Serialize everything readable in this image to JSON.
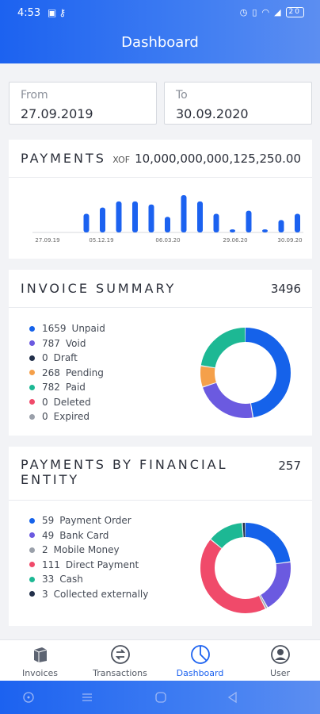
{
  "status_bar": {
    "time": "4:53",
    "left_icons": [
      "sim-card-icon",
      "key-icon"
    ],
    "right_icons": [
      "alarm-icon",
      "vibrate-icon",
      "wifi-icon",
      "signal-icon"
    ],
    "battery": "20"
  },
  "header": {
    "title": "Dashboard"
  },
  "date_range": {
    "from": {
      "label": "From",
      "value": "27.09.2019"
    },
    "to": {
      "label": "To",
      "value": "30.09.2020"
    }
  },
  "payments": {
    "title": "PAYMENTS",
    "currency": "XOF",
    "amount": "10,000,000,000,125,250.00",
    "chart_data": {
      "type": "bar",
      "values": [
        6,
        8,
        10,
        10,
        9,
        5,
        12,
        10,
        6,
        1,
        7,
        1,
        4,
        6
      ],
      "x_tick_labels": [
        "27.09.19",
        "05.12.19",
        "06.03.20",
        "29.06.20",
        "30.09.20"
      ],
      "bar_color": "#1c62f0",
      "title": "",
      "xlabel": "",
      "ylabel": ""
    }
  },
  "invoice_summary": {
    "title": "INVOICE SUMMARY",
    "total": "3496",
    "chart_data": {
      "type": "pie",
      "donut": true,
      "slices": [
        {
          "label": "Unpaid",
          "value": 1659,
          "color": "#1562ea"
        },
        {
          "label": "Void",
          "value": 787,
          "color": "#6b5ae0"
        },
        {
          "label": "Draft",
          "value": 0,
          "color": "#22304a"
        },
        {
          "label": "Pending",
          "value": 268,
          "color": "#f5a04a"
        },
        {
          "label": "Paid",
          "value": 782,
          "color": "#1db894"
        },
        {
          "label": "Deleted",
          "value": 0,
          "color": "#f04a6a"
        },
        {
          "label": "Expired",
          "value": 0,
          "color": "#9aa0aa"
        }
      ]
    }
  },
  "financial_entity": {
    "title_line1": "PAYMENTS BY FINANCIAL",
    "title_line2": "ENTITY",
    "total": "257",
    "chart_data": {
      "type": "pie",
      "donut": true,
      "slices": [
        {
          "label": "Payment Order",
          "value": 59,
          "color": "#1562ea"
        },
        {
          "label": "Bank Card",
          "value": 49,
          "color": "#6b5ae0"
        },
        {
          "label": "Mobile Money",
          "value": 2,
          "color": "#9aa0aa"
        },
        {
          "label": "Direct Payment",
          "value": 111,
          "color": "#f04a6a"
        },
        {
          "label": "Cash",
          "value": 33,
          "color": "#1db894"
        },
        {
          "label": "Collected externally",
          "value": 3,
          "color": "#22304a"
        }
      ]
    }
  },
  "bottom_nav": {
    "items": [
      {
        "label": "Invoices",
        "icon": "invoices-icon"
      },
      {
        "label": "Transactions",
        "icon": "transactions-icon"
      },
      {
        "label": "Dashboard",
        "icon": "dashboard-pie-icon",
        "active": true
      },
      {
        "label": "User",
        "icon": "user-icon"
      }
    ],
    "active_color": "#1c62f0"
  },
  "system_nav": [
    "accessibility-icon",
    "menu-icon",
    "home-icon",
    "back-icon"
  ]
}
